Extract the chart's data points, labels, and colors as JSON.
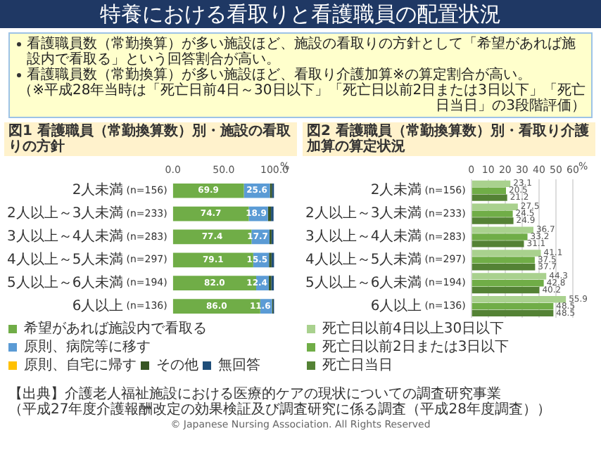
{
  "chart_data": [
    {
      "type": "other",
      "title": "特養における看取りと看護職員の配置状況",
      "annotations": [
        "看護職員数（常勤換算）が多い施設ほど、施設の看取りの方針として「希望があれば施設内で看取る」という回答割合が高い。",
        "看護職員数（常勤換算）が多い施設ほど、看取り介護加算※の算定割合が高い。",
        "（※平成28年当時は「死亡日前4日～30日以下」「死亡日以前2日または3日以下」「死亡日当日」の3段階評価）"
      ]
    },
    {
      "type": "bar",
      "orientation": "horizontal",
      "stacked": true,
      "title": "図1 看護職員（常勤換算数）別・施設の看取りの方針",
      "categories": [
        "2人未満 (n=156)",
        "2人以上～3人未満 (n=233)",
        "3人以上～4人未満 (n=283)",
        "4人以上～5人未満 (n=297)",
        "5人以上～6人未満 (n=194)",
        "6人以上 (n=136)"
      ],
      "series": [
        {
          "name": "希望があれば施設内で看取る",
          "color": "#70ad47",
          "values": [
            69.9,
            74.7,
            77.4,
            79.1,
            82.0,
            86.0
          ],
          "value_labels": [
            "69.9",
            "74.7",
            "77.4",
            "79.1",
            "82.0",
            "86.0"
          ]
        },
        {
          "name": "原則、病院等に移す",
          "color": "#5b9bd5",
          "values": [
            25.6,
            18.9,
            17.7,
            15.5,
            12.4,
            11.6
          ],
          "value_labels": [
            "25.6",
            "18.9",
            "17.7",
            "15.5",
            "12.4",
            "11.6"
          ]
        },
        {
          "name": "原則、自宅に帰す",
          "color": "#ffc000",
          "values": [
            null,
            null,
            null,
            null,
            null,
            null
          ]
        },
        {
          "name": "その他",
          "color": "#375623",
          "values": [
            2,
            3,
            2,
            2.5,
            2.5,
            1
          ]
        },
        {
          "name": "無回答",
          "color": "#1f4e79",
          "values": [
            2,
            2.5,
            2,
            2.5,
            2.5,
            1
          ]
        }
      ],
      "xlim": [
        0,
        100
      ],
      "xticks": [
        {
          "value": 0,
          "label": "0.0"
        },
        {
          "value": 50,
          "label": "50.0"
        },
        {
          "value": 100,
          "label": "100.0"
        }
      ],
      "xlabel": "%",
      "legend": "bottom"
    },
    {
      "type": "bar",
      "orientation": "horizontal",
      "title": "図2 看護職員（常勤換算数）別・看取り介護加算の算定状況",
      "categories": [
        "2人未満 (n=156)",
        "2人以上～3人未満 (n=233)",
        "3人以上～4人未満 (n=283)",
        "4人以上～5人未満 (n=297)",
        "5人以上～6人未満 (n=194)",
        "6人以上 (n=136)"
      ],
      "series": [
        {
          "name": "死亡日以前4日以上30日以下",
          "color": "#a9d18e",
          "values": [
            23.1,
            27.5,
            36.7,
            41.1,
            44.3,
            55.9
          ]
        },
        {
          "name": "死亡日以前2日または3日以下",
          "color": "#70ad47",
          "values": [
            20.5,
            24.5,
            33.2,
            37.5,
            42.8,
            48.5
          ]
        },
        {
          "name": "死亡日当日",
          "color": "#548235",
          "values": [
            21.2,
            24.9,
            31.1,
            37.7,
            40.2,
            48.5
          ]
        }
      ],
      "xlim": [
        0,
        60
      ],
      "xticks": [
        0,
        10,
        20,
        30,
        40,
        50,
        60
      ],
      "xlabel": "%",
      "data_labels": true,
      "grid": "x",
      "legend": "bottom"
    },
    {
      "type": "other",
      "annotations": [
        "【出典】介護老人福祉施設における医療的ケアの現状についての調査研究事業",
        "（平成27年度介護報酬改定の効果検証及び調査研究に係る調査（平成28年度調査））",
        "© Japanese Nursing Association. All Rights Reserved"
      ]
    }
  ]
}
